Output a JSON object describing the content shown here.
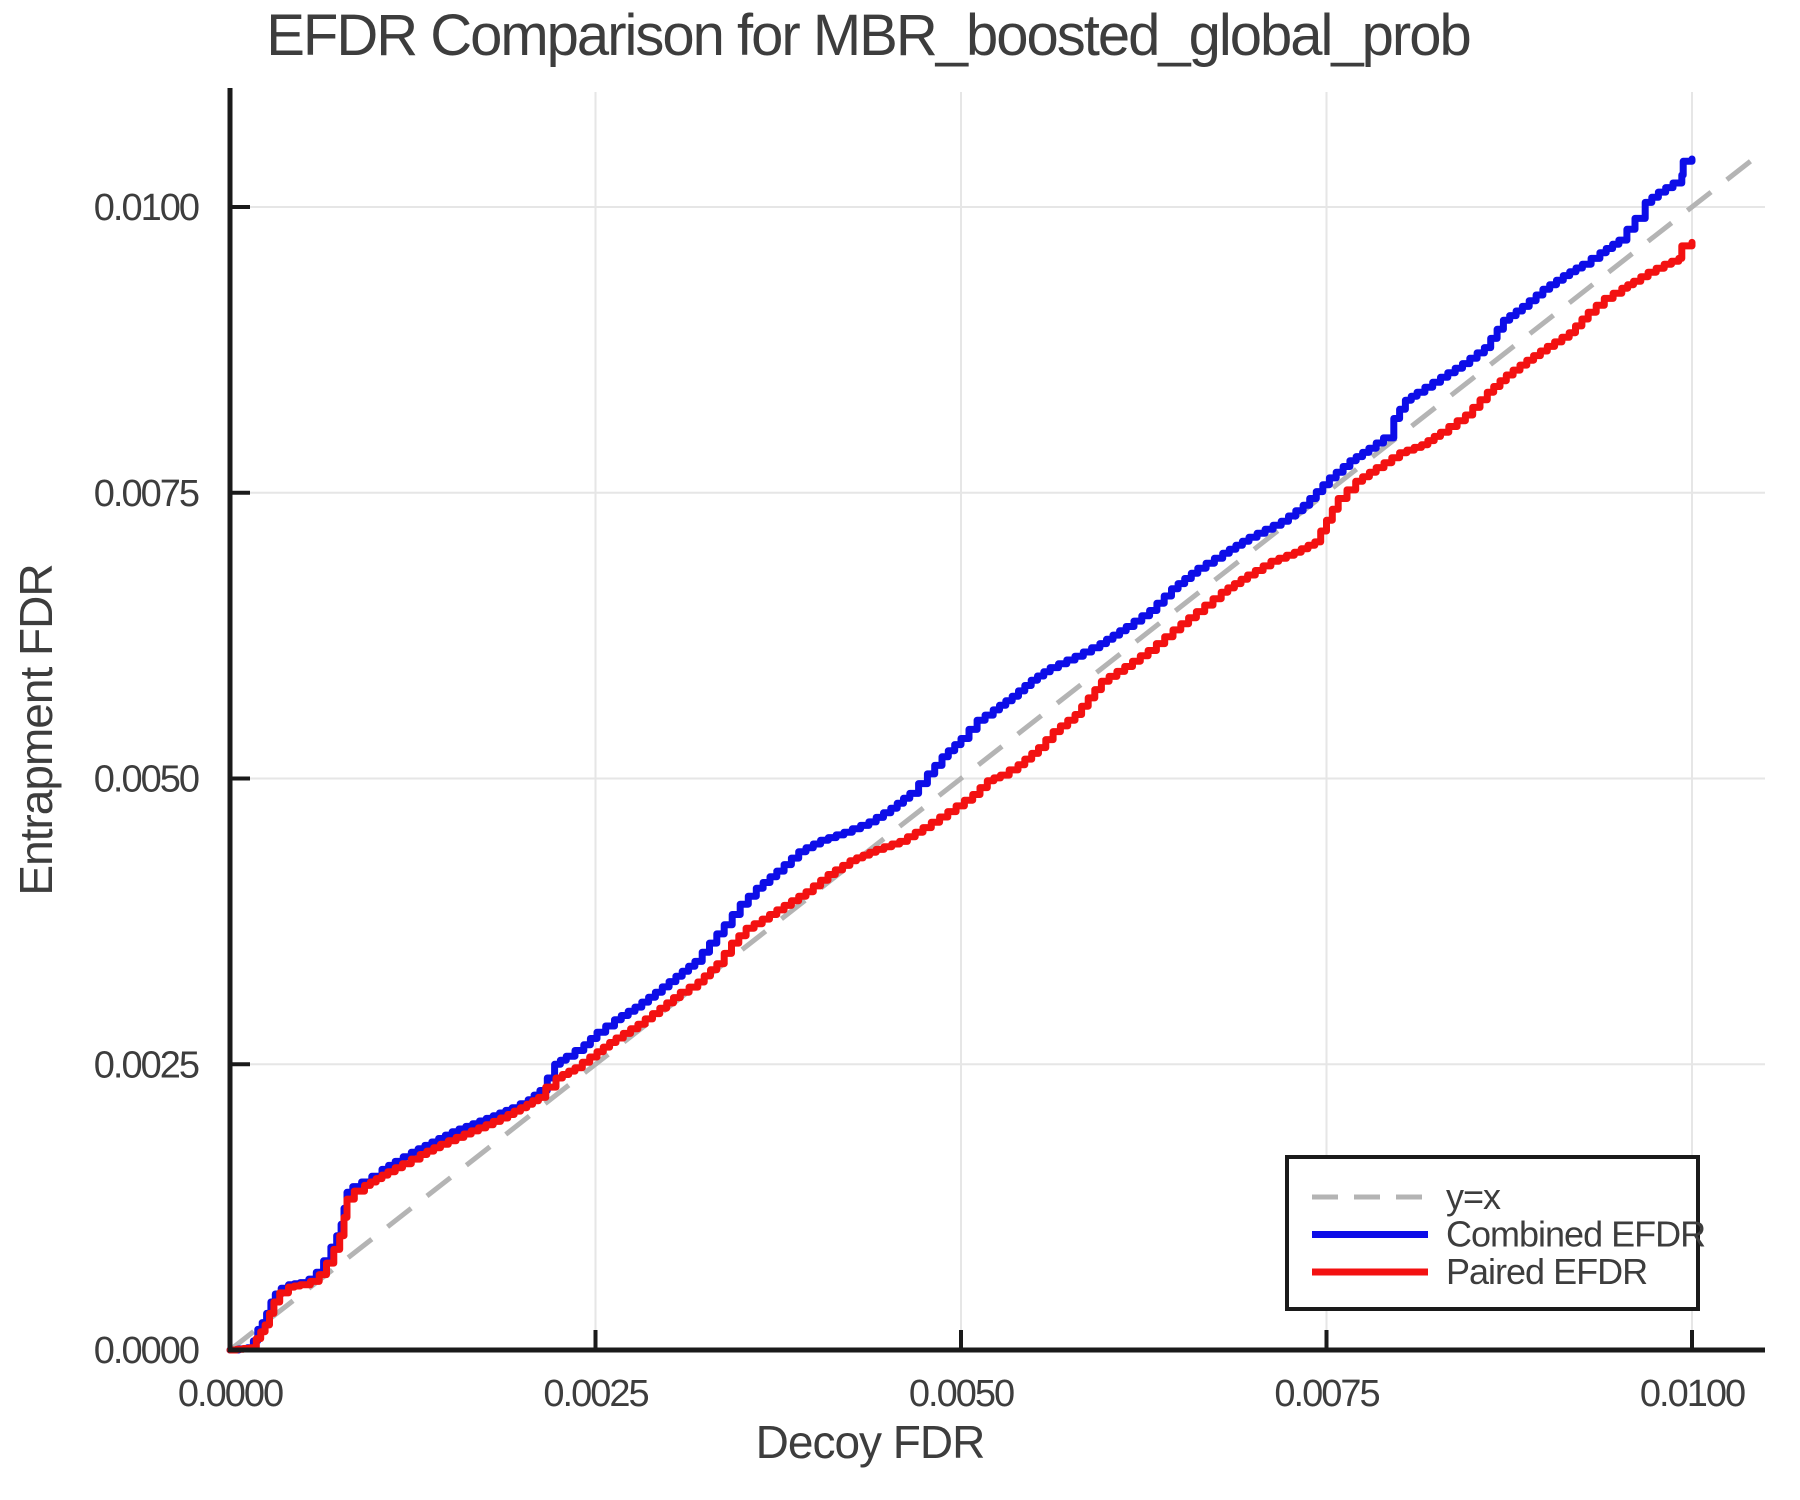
{
  "chart_data": {
    "type": "line",
    "title": "EFDR Comparison for MBR_boosted_global_prob",
    "xlabel": "Decoy FDR",
    "ylabel": "Entrapment FDR",
    "xlim": [
      0,
      0.0105
    ],
    "ylim": [
      0,
      0.01104
    ],
    "grid": true,
    "x_ticks": {
      "values": [
        0,
        0.0025,
        0.005,
        0.0075,
        0.01
      ],
      "labels": [
        "0.0000",
        "0.0025",
        "0.0050",
        "0.0075",
        "0.0100"
      ]
    },
    "y_ticks": {
      "values": [
        0,
        0.0025,
        0.005,
        0.0075,
        0.01
      ],
      "labels": [
        "0.0000",
        "0.0025",
        "0.0050",
        "0.0075",
        "0.0100"
      ]
    },
    "colors": {
      "combined": "#0d0de8",
      "paired": "#f31111",
      "reference": "#b4b4b4",
      "gridline": "#e6e6e6",
      "text": "#3d3d3d",
      "spine": "#1a1a1a"
    },
    "reference_line": {
      "label": "y=x",
      "from": [
        0,
        0
      ],
      "to": [
        0.0105,
        0.0105
      ],
      "dashed": true,
      "color": "#b4b4b4"
    },
    "legend": {
      "position": "bottom-right",
      "entries": [
        {
          "label": "y=x",
          "color": "#b4b4b4",
          "dashed": true
        },
        {
          "label": "Combined EFDR",
          "color": "#0d0de8",
          "dashed": false
        },
        {
          "label": "Paired EFDR",
          "color": "#f31111",
          "dashed": false
        }
      ]
    },
    "series": [
      {
        "name": "Combined EFDR",
        "color": "#0d0de8",
        "points": [
          [
            0.0,
            0.0
          ],
          [
            0.00012,
            2e-05
          ],
          [
            0.00016,
            8e-05
          ],
          [
            0.00019,
            0.00018
          ],
          [
            0.00022,
            0.00024
          ],
          [
            0.00025,
            0.00032
          ],
          [
            0.00028,
            0.00042
          ],
          [
            0.00031,
            0.00049
          ],
          [
            0.00035,
            0.00054
          ],
          [
            0.0004,
            0.00057
          ],
          [
            0.00048,
            0.00059
          ],
          [
            0.00054,
            0.00062
          ],
          [
            0.00059,
            0.00068
          ],
          [
            0.00064,
            0.00078
          ],
          [
            0.00069,
            0.0009
          ],
          [
            0.00073,
            0.001
          ],
          [
            0.00076,
            0.0011
          ],
          [
            0.00078,
            0.00124
          ],
          [
            0.0008,
            0.00138
          ],
          [
            0.00084,
            0.00143
          ],
          [
            0.0009,
            0.00147
          ],
          [
            0.00097,
            0.00152
          ],
          [
            0.00104,
            0.00158
          ],
          [
            0.00113,
            0.00165
          ],
          [
            0.00124,
            0.00173
          ],
          [
            0.00138,
            0.00182
          ],
          [
            0.00152,
            0.00191
          ],
          [
            0.00166,
            0.00198
          ],
          [
            0.0018,
            0.00205
          ],
          [
            0.00193,
            0.00212
          ],
          [
            0.00204,
            0.00219
          ],
          [
            0.00212,
            0.00227
          ],
          [
            0.00217,
            0.00238
          ],
          [
            0.00222,
            0.0025
          ],
          [
            0.0023,
            0.00257
          ],
          [
            0.00242,
            0.00267
          ],
          [
            0.00251,
            0.00278
          ],
          [
            0.00263,
            0.00289
          ],
          [
            0.00277,
            0.003
          ],
          [
            0.00291,
            0.00313
          ],
          [
            0.00305,
            0.00327
          ],
          [
            0.00318,
            0.0034
          ],
          [
            0.00328,
            0.00356
          ],
          [
            0.00338,
            0.00372
          ],
          [
            0.00349,
            0.0039
          ],
          [
            0.0036,
            0.00404
          ],
          [
            0.00374,
            0.00419
          ],
          [
            0.00389,
            0.00436
          ],
          [
            0.00404,
            0.00446
          ],
          [
            0.0042,
            0.00453
          ],
          [
            0.00437,
            0.00462
          ],
          [
            0.00452,
            0.00474
          ],
          [
            0.00465,
            0.00487
          ],
          [
            0.00477,
            0.00504
          ],
          [
            0.00487,
            0.00519
          ],
          [
            0.005,
            0.00535
          ],
          [
            0.00511,
            0.00551
          ],
          [
            0.00522,
            0.0056
          ],
          [
            0.00535,
            0.00572
          ],
          [
            0.00548,
            0.00586
          ],
          [
            0.00561,
            0.00597
          ],
          [
            0.00578,
            0.00607
          ],
          [
            0.00595,
            0.00618
          ],
          [
            0.00613,
            0.00633
          ],
          [
            0.00629,
            0.00647
          ],
          [
            0.00644,
            0.00666
          ],
          [
            0.00662,
            0.00684
          ],
          [
            0.00679,
            0.00697
          ],
          [
            0.00697,
            0.00711
          ],
          [
            0.00719,
            0.00725
          ],
          [
            0.00734,
            0.00739
          ],
          [
            0.00743,
            0.00751
          ],
          [
            0.00752,
            0.00763
          ],
          [
            0.00766,
            0.00778
          ],
          [
            0.00779,
            0.00789
          ],
          [
            0.00789,
            0.00798
          ],
          [
            0.00796,
            0.00815
          ],
          [
            0.00804,
            0.00831
          ],
          [
            0.00812,
            0.00838
          ],
          [
            0.00828,
            0.00851
          ],
          [
            0.00843,
            0.00863
          ],
          [
            0.00858,
            0.00877
          ],
          [
            0.00871,
            0.00901
          ],
          [
            0.00884,
            0.00913
          ],
          [
            0.00898,
            0.00928
          ],
          [
            0.00912,
            0.0094
          ],
          [
            0.00925,
            0.0095
          ],
          [
            0.00937,
            0.0096
          ],
          [
            0.0095,
            0.00971
          ],
          [
            0.00961,
            0.0099
          ],
          [
            0.00968,
            0.01004
          ],
          [
            0.00977,
            0.01013
          ],
          [
            0.00987,
            0.01021
          ],
          [
            0.00993,
            0.01028
          ],
          [
            0.00994,
            0.0104
          ],
          [
            0.01,
            0.01042
          ]
        ]
      },
      {
        "name": "Paired EFDR",
        "color": "#f31111",
        "points": [
          [
            0.0,
            0.0
          ],
          [
            0.00014,
            2e-05
          ],
          [
            0.00018,
            0.0001
          ],
          [
            0.00021,
            0.00016
          ],
          [
            0.00024,
            0.00022
          ],
          [
            0.00027,
            0.00032
          ],
          [
            0.0003,
            0.00042
          ],
          [
            0.00034,
            0.0005
          ],
          [
            0.0004,
            0.00055
          ],
          [
            0.00048,
            0.00057
          ],
          [
            0.00055,
            0.0006
          ],
          [
            0.00061,
            0.00066
          ],
          [
            0.00066,
            0.00076
          ],
          [
            0.00071,
            0.00088
          ],
          [
            0.00075,
            0.001
          ],
          [
            0.00078,
            0.00116
          ],
          [
            0.0008,
            0.00132
          ],
          [
            0.00085,
            0.00139
          ],
          [
            0.00092,
            0.00144
          ],
          [
            0.001,
            0.0015
          ],
          [
            0.00108,
            0.00156
          ],
          [
            0.00118,
            0.00163
          ],
          [
            0.0013,
            0.00171
          ],
          [
            0.00144,
            0.0018
          ],
          [
            0.0016,
            0.00189
          ],
          [
            0.00175,
            0.00197
          ],
          [
            0.0019,
            0.00206
          ],
          [
            0.00203,
            0.00215
          ],
          [
            0.00211,
            0.00221
          ],
          [
            0.00216,
            0.0023
          ],
          [
            0.00223,
            0.00238
          ],
          [
            0.00236,
            0.00247
          ],
          [
            0.00251,
            0.00261
          ],
          [
            0.00264,
            0.00273
          ],
          [
            0.00279,
            0.00285
          ],
          [
            0.00294,
            0.00299
          ],
          [
            0.00308,
            0.00313
          ],
          [
            0.0032,
            0.00322
          ],
          [
            0.00333,
            0.00338
          ],
          [
            0.00343,
            0.00356
          ],
          [
            0.00353,
            0.00369
          ],
          [
            0.00364,
            0.00377
          ],
          [
            0.00379,
            0.00389
          ],
          [
            0.00394,
            0.00401
          ],
          [
            0.00409,
            0.00416
          ],
          [
            0.00424,
            0.00428
          ],
          [
            0.00442,
            0.00438
          ],
          [
            0.00458,
            0.00445
          ],
          [
            0.00474,
            0.00457
          ],
          [
            0.00491,
            0.00471
          ],
          [
            0.00508,
            0.00486
          ],
          [
            0.00518,
            0.00498
          ],
          [
            0.00527,
            0.00503
          ],
          [
            0.00539,
            0.00512
          ],
          [
            0.00553,
            0.00527
          ],
          [
            0.00563,
            0.00541
          ],
          [
            0.00578,
            0.00556
          ],
          [
            0.00596,
            0.00585
          ],
          [
            0.00612,
            0.00598
          ],
          [
            0.00628,
            0.00612
          ],
          [
            0.00645,
            0.0063
          ],
          [
            0.00661,
            0.00646
          ],
          [
            0.00678,
            0.00663
          ],
          [
            0.00696,
            0.00678
          ],
          [
            0.00712,
            0.0069
          ],
          [
            0.00728,
            0.00698
          ],
          [
            0.00742,
            0.00707
          ],
          [
            0.0075,
            0.00726
          ],
          [
            0.00758,
            0.00745
          ],
          [
            0.0077,
            0.0076
          ],
          [
            0.00784,
            0.00772
          ],
          [
            0.008,
            0.00785
          ],
          [
            0.00815,
            0.00792
          ],
          [
            0.00828,
            0.00803
          ],
          [
            0.00845,
            0.00818
          ],
          [
            0.0086,
            0.00838
          ],
          [
            0.00873,
            0.00853
          ],
          [
            0.00887,
            0.00866
          ],
          [
            0.00901,
            0.00878
          ],
          [
            0.00916,
            0.0089
          ],
          [
            0.00929,
            0.00908
          ],
          [
            0.0094,
            0.0092
          ],
          [
            0.00952,
            0.00929
          ],
          [
            0.0096,
            0.00935
          ],
          [
            0.0097,
            0.00943
          ],
          [
            0.00981,
            0.0095
          ],
          [
            0.00991,
            0.00955
          ],
          [
            0.00993,
            0.00966
          ],
          [
            0.01,
            0.00969
          ]
        ]
      }
    ]
  }
}
